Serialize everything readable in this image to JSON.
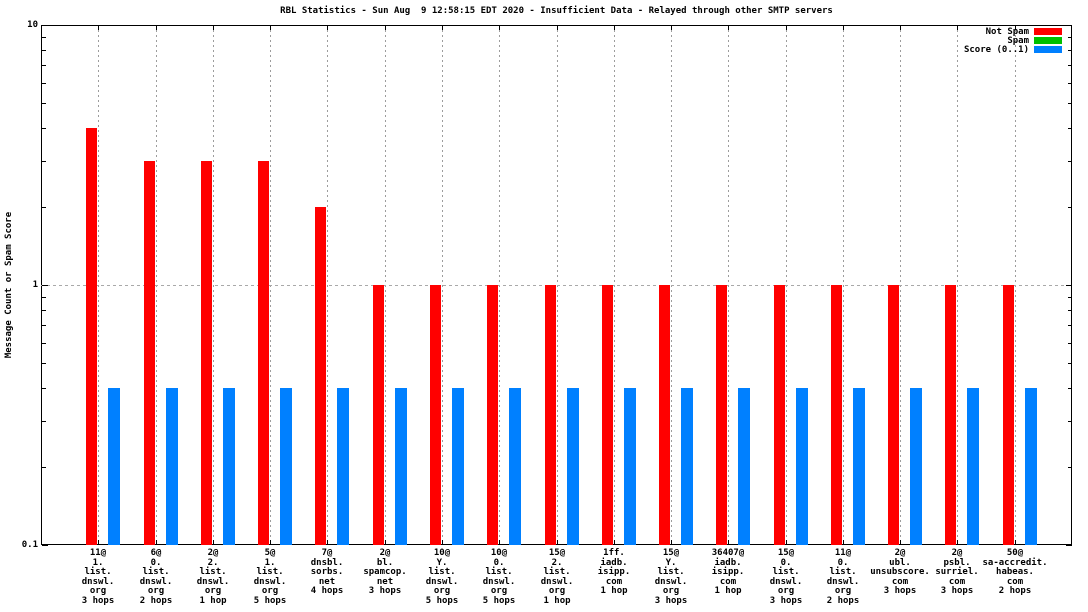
{
  "title": "RBL Statistics - Sun Aug  9 12:58:15 EDT 2020 - Insufficient Data - Relayed through other SMTP servers",
  "y_axis": {
    "label": "Message Count or Spam Score",
    "tick_labels": [
      "10",
      "1",
      "0.1"
    ]
  },
  "legend": {
    "items": [
      {
        "label": "Not Spam",
        "color": "#ff0000"
      },
      {
        "label": "Spam",
        "color": "#00c000"
      },
      {
        "label": "Score (0..1)",
        "color": "#0080ff"
      }
    ]
  },
  "chart_data": {
    "type": "bar",
    "title": "RBL Statistics - Sun Aug  9 12:58:15 EDT 2020 - Insufficient Data - Relayed through other SMTP servers",
    "xlabel": "",
    "ylabel": "Message Count or Spam Score",
    "yscale": "log",
    "ylim": [
      0.1,
      10
    ],
    "grid": {
      "vertical": "dashed line at every category",
      "horizontal": "dashed line at y=1"
    },
    "legend_position": "top-right",
    "categories": [
      [
        "11@",
        "1.",
        "list.",
        "dnswl.",
        "org",
        "3 hops"
      ],
      [
        "6@",
        "0.",
        "list.",
        "dnswl.",
        "org",
        "2 hops"
      ],
      [
        "2@",
        "2.",
        "list.",
        "dnswl.",
        "org",
        "1 hop"
      ],
      [
        "5@",
        "1.",
        "list.",
        "dnswl.",
        "org",
        "5 hops"
      ],
      [
        "7@",
        "dnsbl.",
        "sorbs.",
        "net",
        "4 hops"
      ],
      [
        "2@",
        "bl.",
        "spamcop.",
        "net",
        "3 hops"
      ],
      [
        "10@",
        "Y.",
        "list.",
        "dnswl.",
        "org",
        "5 hops"
      ],
      [
        "10@",
        "0.",
        "list.",
        "dnswl.",
        "org",
        "5 hops"
      ],
      [
        "15@",
        "2.",
        "list.",
        "dnswl.",
        "org",
        "1 hop"
      ],
      [
        "1ff.",
        "iadb.",
        "isipp.",
        "com",
        "1 hop"
      ],
      [
        "15@",
        "Y.",
        "list.",
        "dnswl.",
        "org",
        "3 hops"
      ],
      [
        "36407@",
        "iadb.",
        "isipp.",
        "com",
        "1 hop"
      ],
      [
        "15@",
        "0.",
        "list.",
        "dnswl.",
        "org",
        "3 hops"
      ],
      [
        "11@",
        "0.",
        "list.",
        "dnswl.",
        "org",
        "2 hops"
      ],
      [
        "2@",
        "ubl.",
        "unsubscore.",
        "com",
        "3 hops"
      ],
      [
        "2@",
        "psbl.",
        "surriel.",
        "com",
        "3 hops"
      ],
      [
        "50@",
        "sa-accredit.",
        "habeas.",
        "com",
        "2 hops"
      ]
    ],
    "series": [
      {
        "name": "Not Spam",
        "color": "#ff0000",
        "values": [
          4,
          3,
          3,
          3,
          2,
          1,
          1,
          1,
          1,
          1,
          1,
          1,
          1,
          1,
          1,
          1,
          1
        ]
      },
      {
        "name": "Spam",
        "color": "#00c000",
        "values": [
          0,
          0,
          0,
          0,
          0,
          0,
          0,
          0,
          0,
          0,
          0,
          0,
          0,
          0,
          0,
          0,
          0
        ]
      },
      {
        "name": "Score (0..1)",
        "color": "#0080ff",
        "values": [
          0.4,
          0.4,
          0.4,
          0.4,
          0.4,
          0.4,
          0.4,
          0.4,
          0.4,
          0.4,
          0.4,
          0.4,
          0.4,
          0.4,
          0.4,
          0.4,
          0.4
        ]
      }
    ]
  }
}
